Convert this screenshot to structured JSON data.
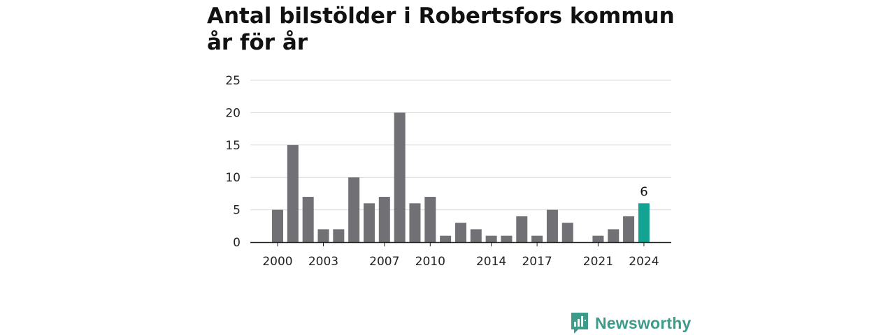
{
  "title": "Antal bilstölder i Robertsfors kommun år för år",
  "brand": {
    "name": "Newsworthy",
    "icon": "newsworthy-logo-icon",
    "color": "#3d9b8a"
  },
  "colors": {
    "bar": "#717075",
    "highlight": "#13a392",
    "grid": "#d9d9d9",
    "axis": "#222222"
  },
  "chart_data": {
    "type": "bar",
    "title": "Antal bilstölder i Robertsfors kommun år för år",
    "xlabel": "",
    "ylabel": "",
    "categories": [
      2000,
      2001,
      2002,
      2003,
      2004,
      2005,
      2006,
      2007,
      2008,
      2009,
      2010,
      2011,
      2012,
      2013,
      2014,
      2015,
      2016,
      2017,
      2018,
      2019,
      2020,
      2021,
      2022,
      2023,
      2024
    ],
    "values": [
      5,
      15,
      7,
      2,
      2,
      10,
      6,
      7,
      20,
      6,
      7,
      1,
      3,
      2,
      1,
      1,
      4,
      1,
      5,
      3,
      0,
      1,
      2,
      4,
      6
    ],
    "ylim": [
      0,
      25
    ],
    "yticks": [
      0,
      5,
      10,
      15,
      20,
      25
    ],
    "xtick_labels": [
      "2000",
      "2003",
      "2007",
      "2010",
      "2014",
      "2017",
      "2021",
      "2024"
    ],
    "highlight": {
      "category": 2024,
      "label": "6"
    },
    "grid": "horizontal",
    "legend": "none"
  }
}
